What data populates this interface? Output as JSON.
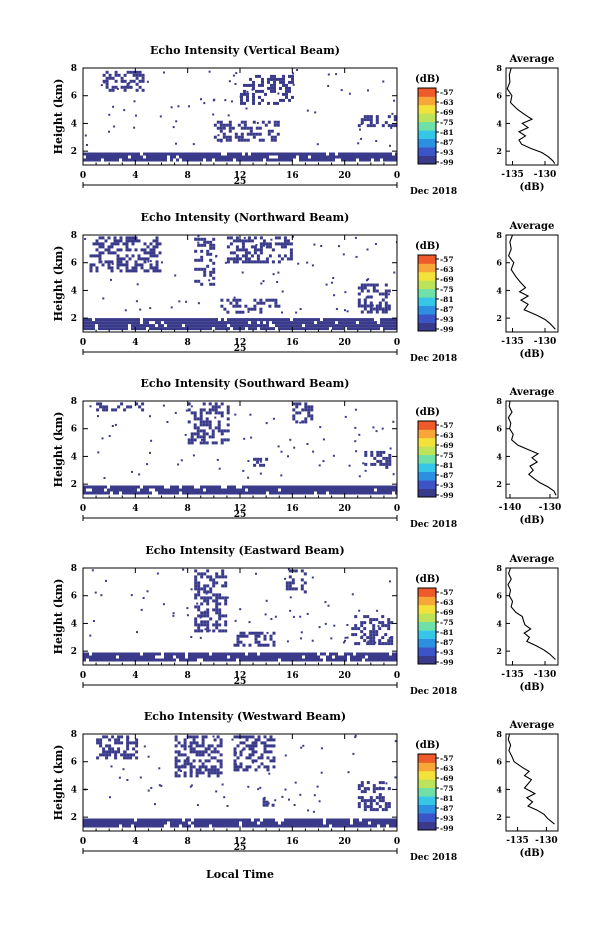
{
  "figure": {
    "xlabel_bottom": "Local Time"
  },
  "colorbar": {
    "unit": "(dB)",
    "ticks": [
      "-57",
      "-63",
      "-69",
      "-75",
      "-81",
      "-87",
      "-93",
      "-99"
    ],
    "colors": [
      "#3a3a8a",
      "#3b55c8",
      "#2c8fe0",
      "#36c6e8",
      "#6fe0a8",
      "#bde35a",
      "#f3e23a",
      "#f8a637",
      "#ef5a2a"
    ]
  },
  "chart_data": [
    {
      "type": "heatmap",
      "title": "Echo Intensity (Vertical Beam)",
      "ylabel": "Height (km)",
      "x_ticks": [
        "0",
        "4",
        "8",
        "12",
        "16",
        "20",
        "0"
      ],
      "date_label": "25",
      "month_label": "Dec 2018",
      "xlim": [
        0,
        24
      ],
      "ylim": [
        1,
        8
      ],
      "y_ticks": [
        "2",
        "4",
        "6",
        "8"
      ],
      "echo_regions": [
        {
          "x": [
            0,
            24
          ],
          "y": [
            1.3,
            1.9
          ],
          "level": -99
        },
        {
          "x": [
            1.5,
            4.5
          ],
          "y": [
            6.3,
            7.8
          ],
          "level": -99
        },
        {
          "x": [
            12,
            16
          ],
          "y": [
            5.5,
            7.5
          ],
          "level": -99
        },
        {
          "x": [
            10,
            15
          ],
          "y": [
            2.8,
            4.2
          ],
          "level": -99
        },
        {
          "x": [
            21,
            24
          ],
          "y": [
            3.8,
            4.6
          ],
          "level": -99
        }
      ],
      "profile": {
        "title": "Average",
        "xlabel": "(dB)",
        "x_ticks": [
          "-135",
          "-130"
        ],
        "xlim": [
          -136,
          -128
        ],
        "ylim": [
          1,
          8
        ],
        "y_ticks": [
          "2",
          "4",
          "6",
          "8"
        ],
        "points": [
          [
            -135.2,
            8.0
          ],
          [
            -135.5,
            7.5
          ],
          [
            -135.4,
            7.0
          ],
          [
            -135.8,
            6.5
          ],
          [
            -135.1,
            6.0
          ],
          [
            -135.3,
            5.5
          ],
          [
            -134.2,
            5.0
          ],
          [
            -133.0,
            4.6
          ],
          [
            -132.0,
            4.3
          ],
          [
            -133.5,
            4.0
          ],
          [
            -132.6,
            3.7
          ],
          [
            -134.0,
            3.4
          ],
          [
            -133.0,
            3.1
          ],
          [
            -134.0,
            2.8
          ],
          [
            -133.6,
            2.5
          ],
          [
            -132.2,
            2.2
          ],
          [
            -130.5,
            1.9
          ],
          [
            -129.5,
            1.6
          ],
          [
            -128.8,
            1.3
          ],
          [
            -128.5,
            1.1
          ]
        ]
      }
    },
    {
      "type": "heatmap",
      "title": "Echo Intensity (Northward Beam)",
      "ylabel": "Height (km)",
      "x_ticks": [
        "0",
        "4",
        "8",
        "12",
        "16",
        "20",
        "0"
      ],
      "date_label": "25",
      "month_label": "Dec 2018",
      "xlim": [
        0,
        24
      ],
      "ylim": [
        1,
        8
      ],
      "y_ticks": [
        "2",
        "4",
        "6",
        "8"
      ],
      "echo_regions": [
        {
          "x": [
            0,
            24
          ],
          "y": [
            1.3,
            2.0
          ],
          "level": -99
        },
        {
          "x": [
            0.5,
            6
          ],
          "y": [
            5.5,
            7.9
          ],
          "level": -99
        },
        {
          "x": [
            8.5,
            10
          ],
          "y": [
            4.5,
            7.8
          ],
          "level": -99
        },
        {
          "x": [
            11,
            16
          ],
          "y": [
            6.0,
            7.9
          ],
          "level": -99
        },
        {
          "x": [
            10.5,
            15
          ],
          "y": [
            2.5,
            3.4
          ],
          "level": -99
        },
        {
          "x": [
            21,
            23.5
          ],
          "y": [
            2.5,
            4.5
          ],
          "level": -99
        }
      ],
      "profile": {
        "title": "Average",
        "xlabel": "(dB)",
        "x_ticks": [
          "-135",
          "-130"
        ],
        "xlim": [
          -136,
          -128
        ],
        "ylim": [
          1,
          8
        ],
        "y_ticks": [
          "2",
          "4",
          "6",
          "8"
        ],
        "points": [
          [
            -135.0,
            8.0
          ],
          [
            -135.4,
            7.5
          ],
          [
            -135.2,
            7.0
          ],
          [
            -135.6,
            6.5
          ],
          [
            -134.8,
            6.0
          ],
          [
            -135.2,
            5.5
          ],
          [
            -134.5,
            5.0
          ],
          [
            -133.8,
            4.6
          ],
          [
            -133.0,
            4.2
          ],
          [
            -133.9,
            3.9
          ],
          [
            -132.6,
            3.6
          ],
          [
            -133.7,
            3.3
          ],
          [
            -132.6,
            3.0
          ],
          [
            -133.2,
            2.6
          ],
          [
            -131.2,
            2.2
          ],
          [
            -130.0,
            1.9
          ],
          [
            -129.2,
            1.6
          ],
          [
            -128.4,
            1.2
          ]
        ]
      }
    },
    {
      "type": "heatmap",
      "title": "Echo Intensity (Southward Beam)",
      "ylabel": "Height (km)",
      "x_ticks": [
        "0",
        "4",
        "8",
        "12",
        "16",
        "20",
        "0"
      ],
      "date_label": "25",
      "month_label": "Dec 2018",
      "xlim": [
        0,
        24
      ],
      "ylim": [
        1,
        8
      ],
      "y_ticks": [
        "2",
        "4",
        "6",
        "8"
      ],
      "echo_regions": [
        {
          "x": [
            0,
            24
          ],
          "y": [
            1.3,
            1.9
          ],
          "level": -99
        },
        {
          "x": [
            1,
            4.5
          ],
          "y": [
            7.3,
            7.9
          ],
          "level": -99
        },
        {
          "x": [
            8,
            11
          ],
          "y": [
            5.0,
            7.9
          ],
          "level": -99
        },
        {
          "x": [
            16,
            17.5
          ],
          "y": [
            6.5,
            7.9
          ],
          "level": -99
        },
        {
          "x": [
            21.5,
            23.5
          ],
          "y": [
            3.2,
            4.4
          ],
          "level": -99
        },
        {
          "x": [
            13,
            14
          ],
          "y": [
            3.3,
            3.9
          ],
          "level": -99
        }
      ],
      "profile": {
        "title": "Average",
        "xlabel": "(dB)",
        "x_ticks": [
          "-140",
          "-130"
        ],
        "xlim": [
          -141,
          -128
        ],
        "ylim": [
          1,
          8
        ],
        "y_ticks": [
          "2",
          "4",
          "6",
          "8"
        ],
        "points": [
          [
            -140.0,
            8.0
          ],
          [
            -140.2,
            7.6
          ],
          [
            -139.5,
            7.2
          ],
          [
            -140.4,
            6.8
          ],
          [
            -139.8,
            6.4
          ],
          [
            -140.1,
            6.0
          ],
          [
            -139.2,
            5.6
          ],
          [
            -139.6,
            5.2
          ],
          [
            -138.0,
            4.8
          ],
          [
            -135.5,
            4.5
          ],
          [
            -133.0,
            4.2
          ],
          [
            -134.5,
            3.9
          ],
          [
            -133.2,
            3.6
          ],
          [
            -135.0,
            3.3
          ],
          [
            -134.2,
            3.0
          ],
          [
            -135.3,
            2.7
          ],
          [
            -134.0,
            2.4
          ],
          [
            -132.5,
            2.1
          ],
          [
            -130.5,
            1.8
          ],
          [
            -129.0,
            1.5
          ],
          [
            -128.5,
            1.2
          ]
        ]
      }
    },
    {
      "type": "heatmap",
      "title": "Echo Intensity (Eastward Beam)",
      "ylabel": "Height (km)",
      "x_ticks": [
        "0",
        "4",
        "8",
        "12",
        "16",
        "20",
        "0"
      ],
      "date_label": "25",
      "month_label": "Dec 2018",
      "xlim": [
        0,
        24
      ],
      "ylim": [
        1,
        8
      ],
      "y_ticks": [
        "2",
        "4",
        "6",
        "8"
      ],
      "echo_regions": [
        {
          "x": [
            0,
            24
          ],
          "y": [
            1.3,
            1.9
          ],
          "level": -99
        },
        {
          "x": [
            8.5,
            11
          ],
          "y": [
            3.5,
            7.9
          ],
          "level": -99
        },
        {
          "x": [
            15.5,
            17
          ],
          "y": [
            6.3,
            7.9
          ],
          "level": -99
        },
        {
          "x": [
            11.5,
            14.5
          ],
          "y": [
            2.4,
            3.4
          ],
          "level": -99
        },
        {
          "x": [
            20.5,
            23.5
          ],
          "y": [
            2.6,
            4.6
          ],
          "level": -99
        }
      ],
      "profile": {
        "title": "Average",
        "xlabel": "(dB)",
        "x_ticks": [
          "-135",
          "-130"
        ],
        "xlim": [
          -136,
          -128
        ],
        "ylim": [
          1,
          8
        ],
        "y_ticks": [
          "2",
          "4",
          "6",
          "8"
        ],
        "points": [
          [
            -135.3,
            8.0
          ],
          [
            -135.6,
            7.6
          ],
          [
            -135.2,
            7.2
          ],
          [
            -135.7,
            6.8
          ],
          [
            -135.3,
            6.4
          ],
          [
            -135.5,
            6.0
          ],
          [
            -135.0,
            5.6
          ],
          [
            -135.2,
            5.2
          ],
          [
            -134.5,
            4.8
          ],
          [
            -133.5,
            4.5
          ],
          [
            -133.3,
            4.2
          ],
          [
            -133.1,
            3.9
          ],
          [
            -132.2,
            3.6
          ],
          [
            -133.2,
            3.3
          ],
          [
            -132.4,
            3.0
          ],
          [
            -132.8,
            2.7
          ],
          [
            -131.4,
            2.4
          ],
          [
            -130.2,
            2.1
          ],
          [
            -129.3,
            1.8
          ],
          [
            -128.4,
            1.4
          ]
        ]
      }
    },
    {
      "type": "heatmap",
      "title": "Echo Intensity (Westward Beam)",
      "ylabel": "Height (km)",
      "x_ticks": [
        "0",
        "4",
        "8",
        "12",
        "16",
        "20",
        "0"
      ],
      "date_label": "25",
      "month_label": "Dec 2018",
      "xlim": [
        0,
        24
      ],
      "ylim": [
        1,
        8
      ],
      "y_ticks": [
        "2",
        "4",
        "6",
        "8"
      ],
      "echo_regions": [
        {
          "x": [
            0,
            24
          ],
          "y": [
            1.3,
            1.9
          ],
          "level": -99
        },
        {
          "x": [
            1,
            4
          ],
          "y": [
            6.3,
            7.9
          ],
          "level": -99
        },
        {
          "x": [
            7,
            10.5
          ],
          "y": [
            5.0,
            7.9
          ],
          "level": -99
        },
        {
          "x": [
            11.5,
            14.5
          ],
          "y": [
            5.5,
            7.9
          ],
          "level": -99
        },
        {
          "x": [
            13.5,
            14.5
          ],
          "y": [
            2.8,
            3.4
          ],
          "level": -99
        },
        {
          "x": [
            21,
            23.5
          ],
          "y": [
            2.6,
            4.6
          ],
          "level": -99
        }
      ],
      "profile": {
        "title": "Average",
        "xlabel": "(dB)",
        "x_ticks": [
          "-135",
          "-130"
        ],
        "xlim": [
          -137,
          -128
        ],
        "ylim": [
          1,
          8
        ],
        "y_ticks": [
          "2",
          "4",
          "6",
          "8"
        ],
        "points": [
          [
            -136.4,
            8.0
          ],
          [
            -136.6,
            7.6
          ],
          [
            -136.2,
            7.2
          ],
          [
            -136.5,
            6.8
          ],
          [
            -136.0,
            6.4
          ],
          [
            -135.6,
            6.0
          ],
          [
            -134.2,
            5.6
          ],
          [
            -133.0,
            5.3
          ],
          [
            -133.8,
            5.0
          ],
          [
            -132.6,
            4.7
          ],
          [
            -133.2,
            4.4
          ],
          [
            -133.8,
            4.1
          ],
          [
            -132.0,
            3.7
          ],
          [
            -133.4,
            3.4
          ],
          [
            -132.4,
            3.1
          ],
          [
            -133.2,
            2.8
          ],
          [
            -131.6,
            2.5
          ],
          [
            -130.4,
            2.2
          ],
          [
            -129.8,
            1.9
          ],
          [
            -128.6,
            1.5
          ]
        ]
      }
    }
  ]
}
